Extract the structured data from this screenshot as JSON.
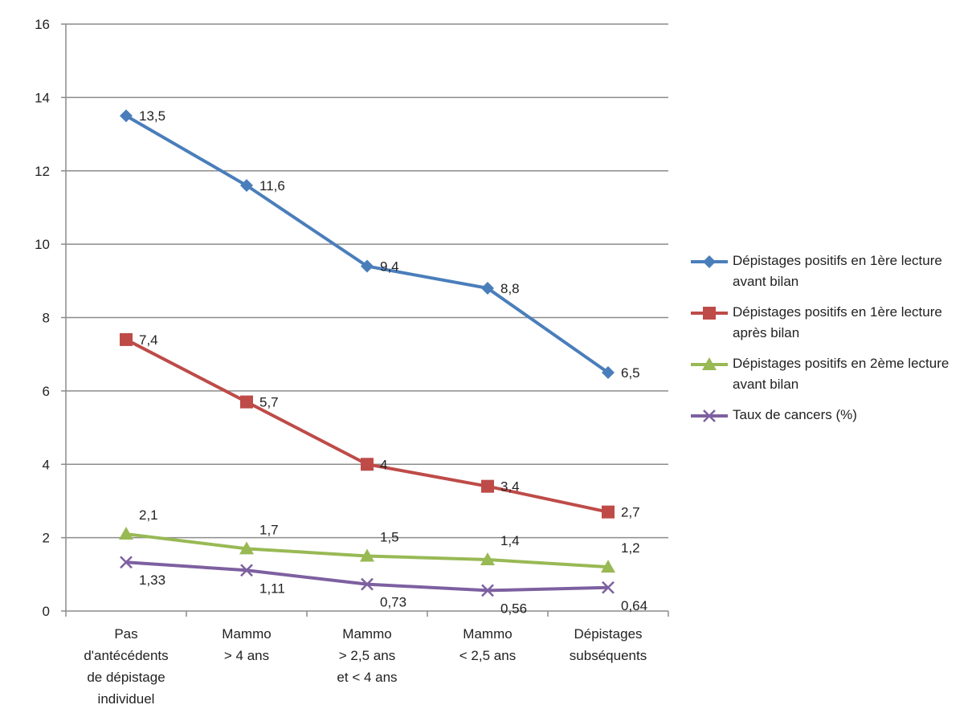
{
  "chart_data": {
    "type": "line",
    "categories": [
      [
        "Pas",
        "d'antécédents",
        "de dépistage",
        "individuel"
      ],
      [
        "Mammo",
        "> 4 ans"
      ],
      [
        "Mammo",
        "> 2,5 ans",
        "et < 4 ans"
      ],
      [
        "Mammo",
        "< 2,5 ans"
      ],
      [
        "Dépistages",
        "subséquents"
      ]
    ],
    "series": [
      {
        "name": "Dépistages positifs en 1ère lecture avant bilan",
        "color": "#4a7ebb",
        "marker": "diamond",
        "values": [
          13.5,
          11.6,
          9.4,
          8.8,
          6.5
        ],
        "value_labels": [
          "13,5",
          "11,6",
          "9,4",
          "8,8",
          "6,5"
        ]
      },
      {
        "name": "Dépistages positifs en 1ère lecture après bilan",
        "color": "#be4b48",
        "marker": "square",
        "values": [
          7.4,
          5.7,
          4,
          3.4,
          2.7
        ],
        "value_labels": [
          "7,4",
          "5,7",
          "4",
          "3,4",
          "2,7"
        ]
      },
      {
        "name": "Dépistages positifs en 2ème lecture avant bilan",
        "color": "#98b954",
        "marker": "triangle",
        "values": [
          2.1,
          1.7,
          1.5,
          1.4,
          1.2
        ],
        "value_labels": [
          "2,1",
          "1,7",
          "1,5",
          "1,4",
          "1,2"
        ]
      },
      {
        "name": "Taux de cancers (%)",
        "color": "#7d60a0",
        "marker": "x",
        "values": [
          1.33,
          1.11,
          0.73,
          0.56,
          0.64
        ],
        "value_labels": [
          "1,33",
          "1,11",
          "0,73",
          "0,56",
          "0,64"
        ]
      }
    ],
    "ylim": [
      0,
      16
    ],
    "yticks": [
      0,
      2,
      4,
      6,
      8,
      10,
      12,
      14,
      16
    ],
    "grid": true,
    "legend": "right"
  }
}
